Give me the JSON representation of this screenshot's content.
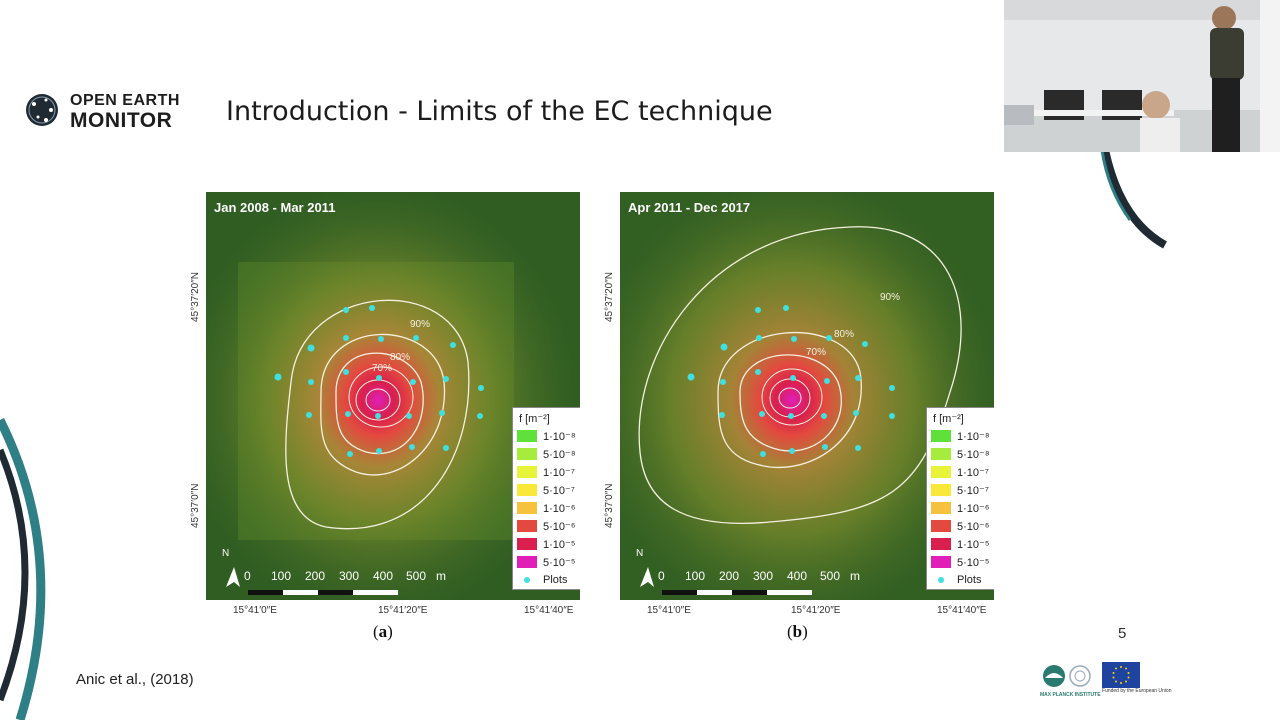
{
  "logo": {
    "line1": "OPEN EARTH",
    "line2": "MONITOR"
  },
  "slide": {
    "title": "Introduction - Limits of the EC technique",
    "page_number": "5"
  },
  "reference": "Anic  et al., (2018)",
  "colors": {
    "accent_teal": "#2e7f86",
    "forest": "#2f5d22",
    "plot_marker": "#3fe0e0",
    "contour": "#f5f0e0"
  },
  "maps": [
    {
      "period": "Jan 2008 - Mar 2011",
      "caption_letter": "a",
      "lat_ticks": [
        "45°37′20″N",
        "45°37′0″N"
      ],
      "lon_ticks": [
        "15°41′0″E",
        "15°41′20″E",
        "15°41′40″E"
      ],
      "contours": [
        "90%",
        "80%",
        "70%"
      ],
      "scale_labels": [
        "0",
        "100",
        "200",
        "300",
        "400",
        "500",
        "m"
      ],
      "north": "N"
    },
    {
      "period": "Apr 2011 - Dec 2017",
      "caption_letter": "b",
      "lat_ticks": [
        "45°37′20″N",
        "45°37′0″N"
      ],
      "lon_ticks": [
        "15°41′0″E",
        "15°41′20″E",
        "15°41′40″E"
      ],
      "contours": [
        "90%",
        "80%",
        "70%"
      ],
      "scale_labels": [
        "0",
        "100",
        "200",
        "300",
        "400",
        "500",
        "m"
      ],
      "north": "N"
    }
  ],
  "legend": {
    "title": "f [m⁻²]",
    "items": [
      {
        "label": "1·10⁻⁸",
        "color": "#5fe03a"
      },
      {
        "label": "5·10⁻⁸",
        "color": "#a6ec3d"
      },
      {
        "label": "1·10⁻⁷",
        "color": "#e8f43a"
      },
      {
        "label": "5·10⁻⁷",
        "color": "#f9e83a"
      },
      {
        "label": "1·10⁻⁶",
        "color": "#f6c23d"
      },
      {
        "label": "5·10⁻⁶",
        "color": "#e3493f"
      },
      {
        "label": "1·10⁻⁵",
        "color": "#d91f4e"
      },
      {
        "label": "5·10⁻⁵",
        "color": "#e11fb8"
      }
    ],
    "plots_label": "Plots"
  }
}
